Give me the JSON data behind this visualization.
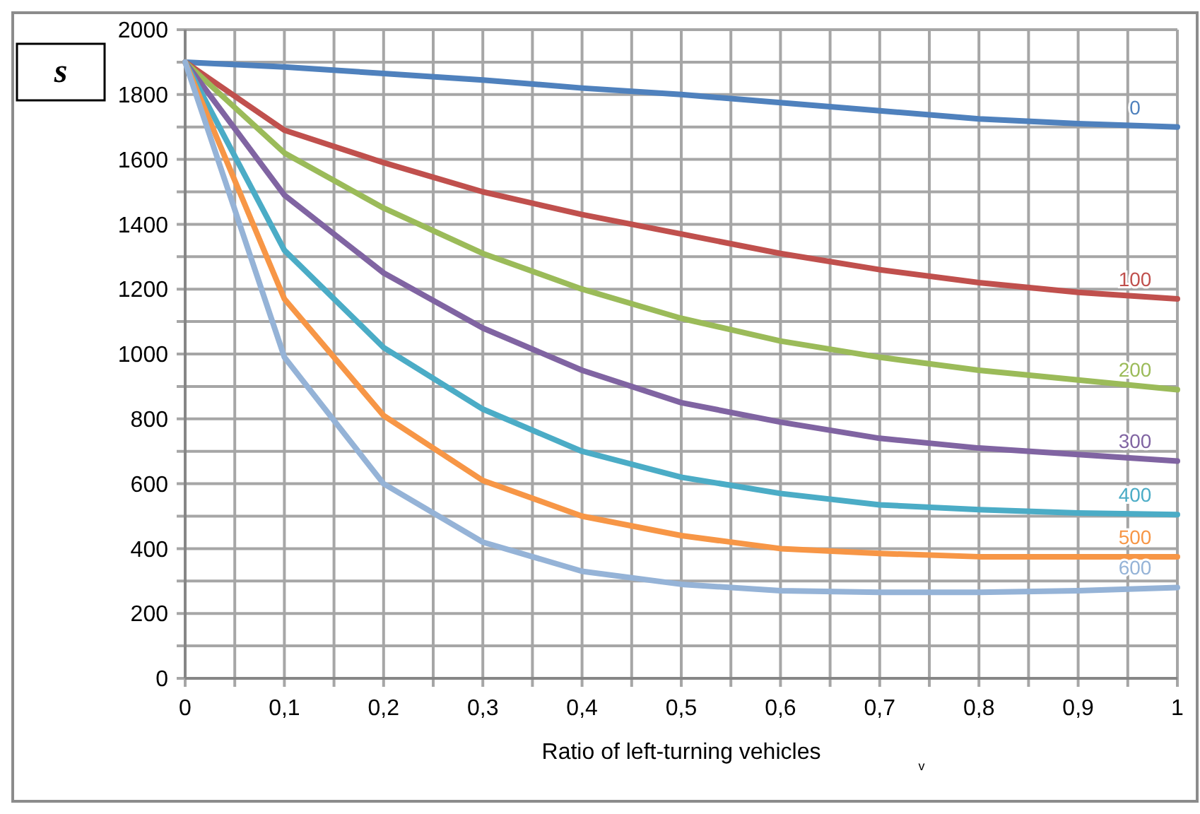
{
  "chart_data": {
    "type": "line",
    "ylabel": "s",
    "xlabel": "Ratio of left-turning vehicles",
    "annotations": [
      "v"
    ],
    "x": [
      0,
      0.1,
      0.2,
      0.3,
      0.4,
      0.5,
      0.6,
      0.7,
      0.8,
      0.9,
      1
    ],
    "series": [
      {
        "name": "0",
        "color": "#4f81bd",
        "values": [
          1900,
          1885,
          1865,
          1845,
          1820,
          1800,
          1775,
          1750,
          1725,
          1710,
          1700
        ]
      },
      {
        "name": "100",
        "color": "#c0504d",
        "values": [
          1900,
          1690,
          1590,
          1500,
          1430,
          1370,
          1310,
          1260,
          1220,
          1190,
          1170
        ]
      },
      {
        "name": "200",
        "color": "#9bbb59",
        "values": [
          1900,
          1620,
          1450,
          1310,
          1200,
          1110,
          1040,
          990,
          950,
          920,
          890
        ]
      },
      {
        "name": "300",
        "color": "#8064a2",
        "values": [
          1900,
          1490,
          1250,
          1080,
          950,
          850,
          790,
          740,
          710,
          690,
          670
        ]
      },
      {
        "name": "400",
        "color": "#4bacc6",
        "values": [
          1900,
          1320,
          1020,
          830,
          700,
          620,
          570,
          535,
          520,
          510,
          505
        ]
      },
      {
        "name": "500",
        "color": "#f79646",
        "values": [
          1900,
          1170,
          810,
          610,
          500,
          440,
          400,
          385,
          375,
          375,
          375
        ]
      },
      {
        "name": "600",
        "color": "#95b3d7",
        "values": [
          1900,
          990,
          600,
          420,
          330,
          290,
          270,
          265,
          265,
          270,
          280
        ]
      }
    ],
    "xlim": [
      0,
      1
    ],
    "ylim": [
      0,
      2000
    ],
    "xticks": [
      0,
      {
        "value": 0.05,
        "label": null
      },
      {
        "value": 0.1,
        "label": "0,1"
      },
      {
        "value": 0.15,
        "label": null
      },
      {
        "value": 0.2,
        "label": "0,2"
      },
      {
        "value": 0.25,
        "label": null
      },
      {
        "value": 0.3,
        "label": "0,3"
      },
      {
        "value": 0.35,
        "label": null
      },
      {
        "value": 0.4,
        "label": "0,4"
      },
      {
        "value": 0.45,
        "label": null
      },
      {
        "value": 0.5,
        "label": "0,5"
      },
      {
        "value": 0.55,
        "label": null
      },
      {
        "value": 0.6,
        "label": "0,6"
      },
      {
        "value": 0.65,
        "label": null
      },
      {
        "value": 0.7,
        "label": "0,7"
      },
      {
        "value": 0.75,
        "label": null
      },
      {
        "value": 0.8,
        "label": "0,8"
      },
      {
        "value": 0.85,
        "label": null
      },
      {
        "value": 0.9,
        "label": "0,9"
      },
      {
        "value": 0.95,
        "label": null
      },
      1
    ],
    "yticks": [
      0,
      {
        "value": 100,
        "label": null
      },
      200,
      {
        "value": 300,
        "label": null
      },
      400,
      {
        "value": 500,
        "label": null
      },
      600,
      {
        "value": 700,
        "label": null
      },
      800,
      {
        "value": 900,
        "label": null
      },
      1000,
      {
        "value": 1100,
        "label": null
      },
      1200,
      {
        "value": 1300,
        "label": null
      },
      1400,
      {
        "value": 1500,
        "label": null
      },
      1600,
      {
        "value": 1700,
        "label": null
      },
      1800,
      {
        "value": 1900,
        "label": null
      },
      2000
    ],
    "grid": true,
    "marker": "none",
    "line_style": "solid"
  }
}
